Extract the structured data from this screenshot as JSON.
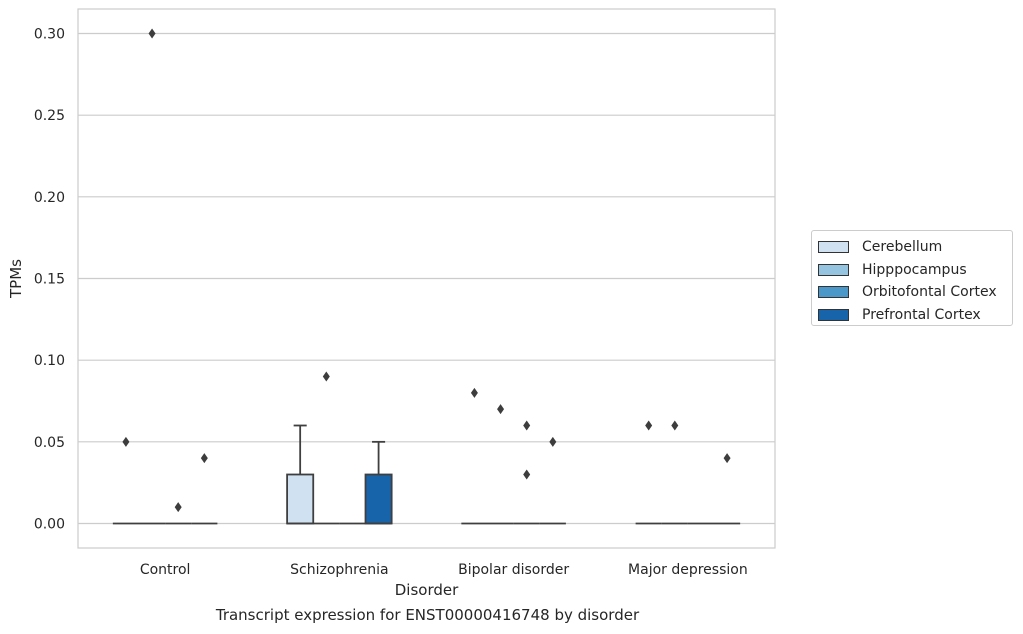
{
  "caption": "Transcript expression for ENST00000416748 by disorder",
  "chart_data": {
    "type": "box",
    "xlabel": "Disorder",
    "ylabel": "TPMs",
    "ylim": [
      -0.015,
      0.315
    ],
    "yticks": [
      0.0,
      0.05,
      0.1,
      0.15,
      0.2,
      0.25,
      0.3
    ],
    "ytick_labels": [
      "0.00",
      "0.05",
      "0.10",
      "0.15",
      "0.20",
      "0.25",
      "0.30"
    ],
    "categories": [
      "Control",
      "Schizophrenia",
      "Bipolar disorder",
      "Major depression"
    ],
    "grid": "horizontal",
    "legend_position": "right",
    "series": [
      {
        "name": "Cerebellum",
        "color": "#d0e1f2",
        "boxes": [
          {
            "q1": 0,
            "median": 0,
            "q3": 0,
            "whislo": 0,
            "whishi": 0,
            "fliers": [
              0.05
            ]
          },
          {
            "q1": 0,
            "median": 0,
            "q3": 0.03,
            "whislo": 0,
            "whishi": 0.06,
            "fliers": []
          },
          {
            "q1": 0,
            "median": 0,
            "q3": 0,
            "whislo": 0,
            "whishi": 0,
            "fliers": [
              0.08
            ]
          },
          {
            "q1": 0,
            "median": 0,
            "q3": 0,
            "whislo": 0,
            "whishi": 0,
            "fliers": [
              0.06
            ]
          }
        ]
      },
      {
        "name": "Hipppocampus",
        "color": "#94c4df",
        "boxes": [
          {
            "q1": 0,
            "median": 0,
            "q3": 0,
            "whislo": 0,
            "whishi": 0,
            "fliers": [
              0.3
            ]
          },
          {
            "q1": 0,
            "median": 0,
            "q3": 0,
            "whislo": 0,
            "whishi": 0,
            "fliers": [
              0.09
            ]
          },
          {
            "q1": 0,
            "median": 0,
            "q3": 0,
            "whislo": 0,
            "whishi": 0,
            "fliers": [
              0.07
            ]
          },
          {
            "q1": 0,
            "median": 0,
            "q3": 0,
            "whislo": 0,
            "whishi": 0,
            "fliers": [
              0.06
            ]
          }
        ]
      },
      {
        "name": "Orbitofontal Cortex",
        "color": "#4a98c9",
        "boxes": [
          {
            "q1": 0,
            "median": 0,
            "q3": 0,
            "whislo": 0,
            "whishi": 0,
            "fliers": [
              0.01
            ]
          },
          {
            "q1": 0,
            "median": 0,
            "q3": 0,
            "whislo": 0,
            "whishi": 0,
            "fliers": []
          },
          {
            "q1": 0,
            "median": 0,
            "q3": 0,
            "whislo": 0,
            "whishi": 0,
            "fliers": [
              0.06,
              0.03
            ]
          },
          {
            "q1": 0,
            "median": 0,
            "q3": 0,
            "whislo": 0,
            "whishi": 0,
            "fliers": []
          }
        ]
      },
      {
        "name": "Prefrontal Cortex",
        "color": "#1764ab",
        "boxes": [
          {
            "q1": 0,
            "median": 0,
            "q3": 0,
            "whislo": 0,
            "whishi": 0,
            "fliers": [
              0.04
            ]
          },
          {
            "q1": 0,
            "median": 0,
            "q3": 0.03,
            "whislo": 0,
            "whishi": 0.05,
            "fliers": []
          },
          {
            "q1": 0,
            "median": 0,
            "q3": 0,
            "whislo": 0,
            "whishi": 0,
            "fliers": [
              0.05
            ]
          },
          {
            "q1": 0,
            "median": 0,
            "q3": 0,
            "whislo": 0,
            "whishi": 0,
            "fliers": [
              0.04
            ]
          }
        ]
      }
    ]
  }
}
